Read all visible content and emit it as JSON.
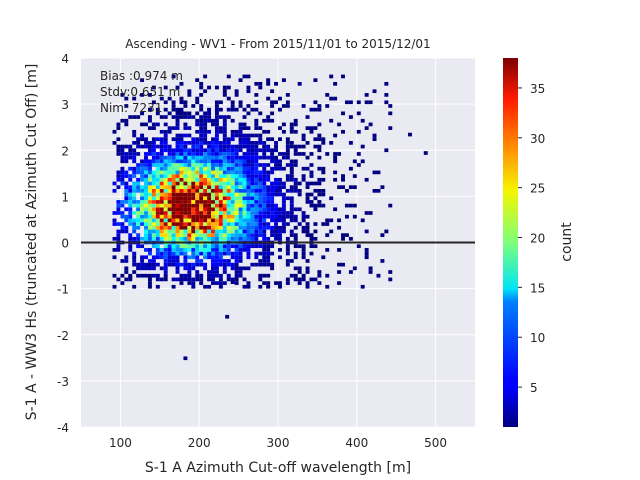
{
  "chart_data": {
    "type": "heatmap",
    "title": "Ascending - WV1 - From 2015/11/01 to 2015/12/01",
    "xlabel": "S-1 A Azimuth Cut-off wavelength [m]",
    "ylabel": "S-1 A - WW3 Hs (truncated at Azimuth Cut Off) [m]",
    "xlim": [
      50,
      550
    ],
    "ylim": [
      -4,
      4
    ],
    "xticks": [
      100,
      200,
      300,
      400,
      500
    ],
    "yticks": [
      -4,
      -3,
      -2,
      -1,
      0,
      1,
      2,
      3,
      4
    ],
    "grid": true,
    "reference_line_y": 0,
    "annotations": [
      "Bias :0.974 m",
      "Stdv:0.651 m",
      "Nim: 7231"
    ],
    "colorbar": {
      "label": "count",
      "range": [
        1,
        38
      ],
      "ticks": [
        5,
        10,
        15,
        20,
        25,
        30,
        35
      ],
      "colormap": "jet"
    },
    "density_peak": {
      "x": 185,
      "y": 0.75,
      "count": 38
    },
    "outliers": [
      {
        "x": 180,
        "y": -2.55
      },
      {
        "x": 233,
        "y": -1.65
      },
      {
        "x": 110,
        "y": -0.8
      },
      {
        "x": 240,
        "y": -0.9
      },
      {
        "x": 465,
        "y": 2.3
      },
      {
        "x": 485,
        "y": 1.9
      },
      {
        "x": 395,
        "y": -0.6
      }
    ]
  },
  "colors": {
    "axes_background": "#eaeaf2",
    "grid": "#ffffff",
    "zero_line": "#262626",
    "text": "#262626"
  }
}
